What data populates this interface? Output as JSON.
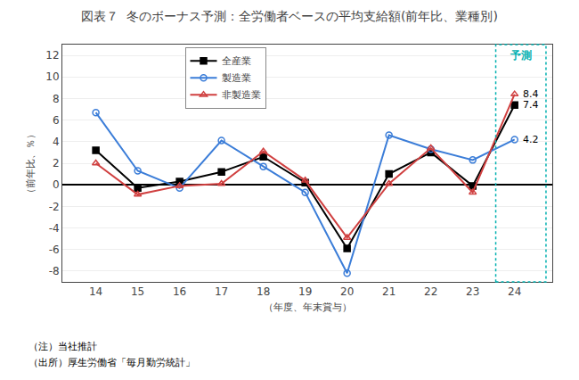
{
  "chart_data": {
    "type": "line",
    "title": "図表７  冬のボーナス予測：全労働者ベースの平均支給額(前年比、業種別)",
    "y_label": "（前年比、％）",
    "x_label": "（年度、年末賞与）",
    "notes": [
      "（注）当社推計",
      "（出所）厚生労働省「毎月勤労統計」"
    ],
    "x": [
      14,
      15,
      16,
      17,
      18,
      19,
      20,
      21,
      22,
      23,
      24
    ],
    "series": [
      {
        "name": "全産業",
        "color": "#000000",
        "marker": "square",
        "values": [
          3.2,
          -0.3,
          0.3,
          1.2,
          2.6,
          0.2,
          -5.9,
          1.0,
          3.0,
          -0.1,
          7.4
        ]
      },
      {
        "name": "製造業",
        "color": "#3b7dd8",
        "marker": "circle-open",
        "values": [
          6.7,
          1.3,
          -0.3,
          4.1,
          1.7,
          -0.7,
          -8.2,
          4.6,
          3.3,
          2.3,
          4.2
        ]
      },
      {
        "name": "非製造業",
        "color": "#d04040",
        "marker": "triangle-up-open",
        "values": [
          2.0,
          -0.9,
          -0.1,
          0.1,
          3.1,
          0.4,
          -4.9,
          0.1,
          3.4,
          -0.7,
          8.4
        ]
      }
    ],
    "annotations": [
      {
        "text": "8.4",
        "x": 24,
        "y": 8.4
      },
      {
        "text": "7.4",
        "x": 24,
        "y": 7.4
      },
      {
        "text": "4.2",
        "x": 24,
        "y": 4.2
      }
    ],
    "predict_region": {
      "label": "予測",
      "x0": 23.55,
      "x1": 24.75,
      "color": "#00b0b0"
    },
    "xlim": [
      13.2,
      24.9
    ],
    "xticks": [
      14,
      15,
      16,
      17,
      18,
      19,
      20,
      21,
      22,
      23,
      24
    ],
    "ylim": [
      -9,
      13
    ],
    "yticks": [
      -8,
      -6,
      -4,
      -2,
      0,
      2,
      4,
      6,
      8,
      10,
      12
    ],
    "grid": true,
    "legend": "upper left"
  }
}
